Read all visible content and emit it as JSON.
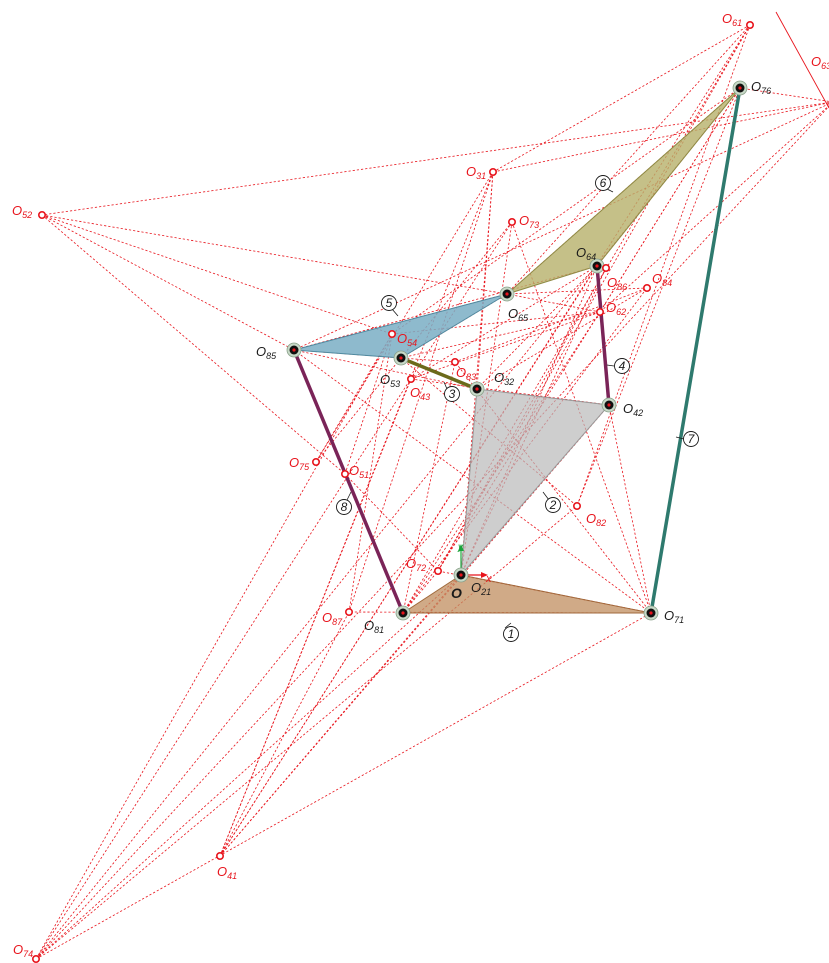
{
  "colors": {
    "dashed": "#e8141c",
    "link1": "#c08d5f",
    "link2": "#b9b9b9",
    "link5": "#7aaec4",
    "link6": "#b7b06a",
    "link7": "#2e7a6e",
    "link8": "#7a2458",
    "link4": "#7a2458",
    "link3": "#6b6a1a"
  },
  "origin": {
    "label": "O",
    "x_axis": "x",
    "y_axis": "y"
  },
  "joints": [
    {
      "id": "O21",
      "base": "O",
      "sub": "21"
    },
    {
      "id": "O32",
      "base": "O",
      "sub": "32"
    },
    {
      "id": "O42",
      "base": "O",
      "sub": "42"
    },
    {
      "id": "O53",
      "base": "O",
      "sub": "53"
    },
    {
      "id": "O64",
      "base": "O",
      "sub": "64"
    },
    {
      "id": "O65",
      "base": "O",
      "sub": "65"
    },
    {
      "id": "O71",
      "base": "O",
      "sub": "71"
    },
    {
      "id": "O76",
      "base": "O",
      "sub": "76"
    },
    {
      "id": "O81",
      "base": "O",
      "sub": "81"
    },
    {
      "id": "O85",
      "base": "O",
      "sub": "85"
    }
  ],
  "instant_centers": [
    {
      "id": "O31",
      "base": "O",
      "sub": "31"
    },
    {
      "id": "O41",
      "base": "O",
      "sub": "41"
    },
    {
      "id": "O43",
      "base": "O",
      "sub": "43"
    },
    {
      "id": "O51",
      "base": "O",
      "sub": "51"
    },
    {
      "id": "O52",
      "base": "O",
      "sub": "52"
    },
    {
      "id": "O54",
      "base": "O",
      "sub": "54"
    },
    {
      "id": "O61",
      "base": "O",
      "sub": "61"
    },
    {
      "id": "O62",
      "base": "O",
      "sub": "62"
    },
    {
      "id": "O63",
      "base": "O",
      "sub": "63"
    },
    {
      "id": "O72",
      "base": "O",
      "sub": "72"
    },
    {
      "id": "O73",
      "base": "O",
      "sub": "73"
    },
    {
      "id": "O74",
      "base": "O",
      "sub": "74"
    },
    {
      "id": "O75",
      "base": "O",
      "sub": "75"
    },
    {
      "id": "O82",
      "base": "O",
      "sub": "82"
    },
    {
      "id": "O83",
      "base": "O",
      "sub": "83"
    },
    {
      "id": "O84",
      "base": "O",
      "sub": "84"
    },
    {
      "id": "O86",
      "base": "O",
      "sub": "86"
    },
    {
      "id": "O87",
      "base": "O",
      "sub": "87"
    }
  ],
  "link_numbers": [
    "1",
    "2",
    "3",
    "4",
    "5",
    "6",
    "7",
    "8"
  ]
}
